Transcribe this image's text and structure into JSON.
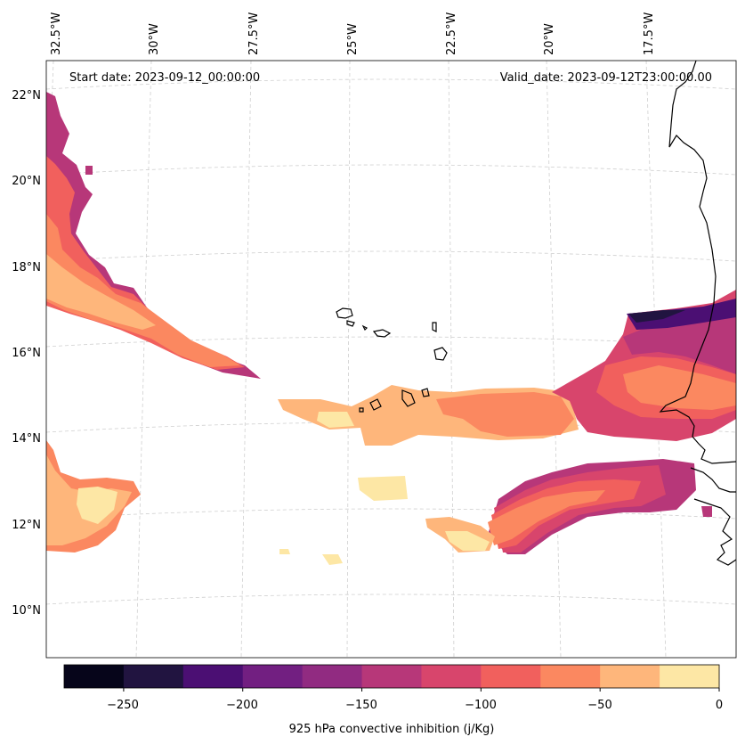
{
  "map": {
    "start_date": "Start date: 2023-09-12_00:00:00",
    "valid_date": "Valid_date: 2023-09-12T23:00:00.00",
    "lon_labels": [
      "32.5°W",
      "30°W",
      "27.5°W",
      "25°W",
      "22.5°W",
      "20°W",
      "17.5°W"
    ],
    "lat_labels": [
      "22°N",
      "20°N",
      "18°N",
      "16°N",
      "14°N",
      "12°N",
      "10°N"
    ],
    "variable": "925 hPa convective inhibition",
    "units": "j/Kg"
  },
  "colorbar": {
    "label": "925 hPa convective inhibition (j/Kg)",
    "tick_labels": [
      "−250",
      "−200",
      "−150",
      "−100",
      "−50",
      "0"
    ],
    "levels": [
      -275,
      -250,
      -225,
      -200,
      -175,
      -150,
      -125,
      -100,
      -75,
      -50,
      -25,
      0
    ],
    "colors": [
      "#06051a",
      "#211440",
      "#4b0f73",
      "#721f81",
      "#912b81",
      "#b73779",
      "#d8456c",
      "#f1605d",
      "#fb8860",
      "#feb67b",
      "#fde7a5"
    ]
  },
  "colors": {
    "coastline": "#000000",
    "gridline": "#cccccc"
  }
}
